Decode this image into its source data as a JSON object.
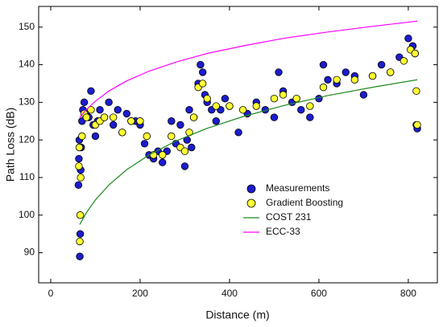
{
  "chart_data": {
    "type": "scatter",
    "xlabel": "Distance (m)",
    "ylabel": "Path Loss (dB)",
    "xlim": [
      -27,
      865
    ],
    "ylim": [
      82,
      155.5
    ],
    "xticks": [
      0,
      200,
      400,
      600,
      800
    ],
    "yticks": [
      90,
      100,
      110,
      120,
      130,
      140,
      150
    ],
    "legend": "center",
    "series": [
      {
        "name": "Measurements",
        "type": "scatter",
        "color": "#1c1ccf",
        "edgecolor": "#000000",
        "x": [
          62,
          63,
          64,
          65,
          66,
          67,
          68,
          70,
          72,
          75,
          80,
          85,
          90,
          95,
          100,
          105,
          110,
          120,
          130,
          140,
          150,
          160,
          170,
          180,
          190,
          200,
          210,
          220,
          230,
          240,
          250,
          260,
          270,
          280,
          290,
          300,
          305,
          310,
          315,
          320,
          330,
          335,
          340,
          345,
          350,
          360,
          370,
          380,
          390,
          400,
          420,
          440,
          460,
          480,
          500,
          510,
          520,
          540,
          560,
          580,
          600,
          610,
          620,
          640,
          660,
          680,
          700,
          720,
          740,
          760,
          780,
          800,
          810,
          815,
          818,
          820
        ],
        "values": [
          108,
          115,
          120,
          89,
          95,
          112,
          118,
          125,
          128,
          130,
          127,
          126,
          133,
          124,
          121,
          125,
          128,
          126,
          130,
          124,
          128,
          122,
          127,
          125,
          125,
          124,
          119,
          116,
          115,
          117,
          114,
          117,
          125,
          119,
          124,
          113,
          120,
          128,
          118,
          126,
          135,
          140,
          138,
          132,
          130,
          128,
          125,
          128,
          131,
          129,
          122,
          127,
          130,
          128,
          126,
          138,
          133,
          130,
          128,
          126,
          131,
          140,
          136,
          135,
          138,
          137,
          132,
          137,
          140,
          138,
          142,
          147,
          145,
          143,
          124,
          123
        ]
      },
      {
        "name": "Gradient Boosting",
        "type": "scatter",
        "color": "#ffff33",
        "edgecolor": "#000000",
        "x": [
          63,
          64,
          65,
          66,
          67,
          70,
          75,
          80,
          90,
          100,
          110,
          120,
          140,
          160,
          180,
          200,
          215,
          230,
          250,
          270,
          290,
          300,
          310,
          320,
          330,
          340,
          350,
          370,
          400,
          430,
          460,
          500,
          520,
          550,
          580,
          610,
          640,
          680,
          720,
          760,
          790,
          805,
          815,
          818,
          820
        ],
        "values": [
          113,
          118,
          93,
          100,
          110,
          121,
          127,
          126,
          128,
          124,
          125,
          126,
          126,
          122,
          125,
          125,
          121,
          116,
          116,
          121,
          118,
          117,
          122,
          126,
          134,
          135,
          131,
          129,
          129,
          128,
          129,
          131,
          132,
          131,
          129,
          134,
          136,
          136,
          137,
          138,
          141,
          144,
          143,
          133,
          124
        ]
      },
      {
        "name": "COST 231",
        "type": "line",
        "color": "#1f8a1f",
        "x": [
          65,
          80,
          100,
          130,
          170,
          220,
          280,
          350,
          430,
          520,
          620,
          720,
          820
        ],
        "values": [
          97.5,
          100.7,
          104.05,
          108.0,
          112.1,
          116.0,
          119.7,
          123.1,
          126.2,
          129.1,
          131.8,
          134.0,
          136.0
        ]
      },
      {
        "name": "ECC-33",
        "type": "line",
        "color": "#ff00ff",
        "x": [
          65,
          80,
          100,
          130,
          170,
          220,
          280,
          350,
          430,
          520,
          620,
          720,
          820
        ],
        "values": [
          126.0,
          128.1,
          130.3,
          133.0,
          135.7,
          138.3,
          140.7,
          143.0,
          145.0,
          147.0,
          148.7,
          150.2,
          151.6
        ]
      }
    ]
  }
}
